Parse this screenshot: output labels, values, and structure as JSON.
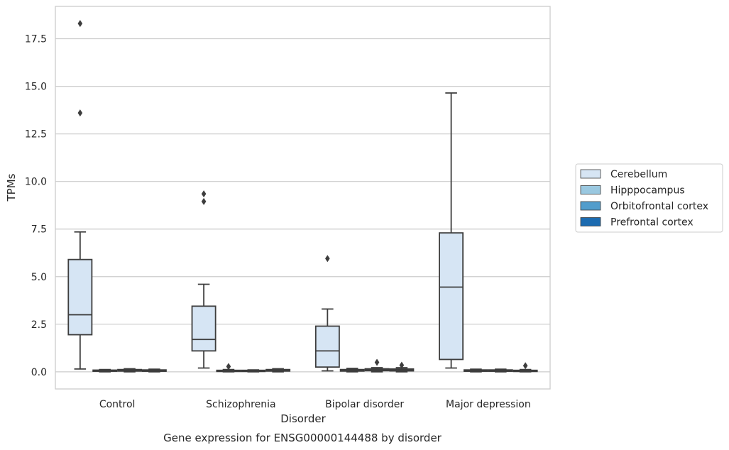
{
  "chart_data": {
    "type": "box",
    "caption": "Gene expression for ENSG00000144488 by disorder",
    "xlabel": "Disorder",
    "ylabel": "TPMs",
    "ylim": [
      -0.9,
      19.2
    ],
    "yticks": [
      0.0,
      2.5,
      5.0,
      7.5,
      10.0,
      12.5,
      15.0,
      17.5
    ],
    "ytick_labels": [
      "0.0",
      "2.5",
      "5.0",
      "7.5",
      "10.0",
      "12.5",
      "15.0",
      "17.5"
    ],
    "grid": true,
    "legend_position": "right",
    "categories": [
      "Control",
      "Schizophrenia",
      "Bipolar disorder",
      "Major depression"
    ],
    "series": [
      {
        "name": "Cerebellum",
        "color": "#d6e5f4",
        "boxes": [
          {
            "whislo": 0.15,
            "q1": 1.95,
            "med": 3.0,
            "q3": 5.9,
            "whishi": 7.35,
            "fliers": [
              13.6,
              18.3
            ]
          },
          {
            "whislo": 0.2,
            "q1": 1.1,
            "med": 1.7,
            "q3": 3.45,
            "whishi": 4.6,
            "fliers": [
              8.95,
              9.35
            ]
          },
          {
            "whislo": 0.05,
            "q1": 0.25,
            "med": 1.1,
            "q3": 2.4,
            "whishi": 3.3,
            "fliers": [
              5.95
            ]
          },
          {
            "whislo": 0.2,
            "q1": 0.65,
            "med": 4.45,
            "q3": 7.3,
            "whishi": 14.65,
            "fliers": []
          }
        ]
      },
      {
        "name": "Hipppocampus",
        "color": "#9ac8e0",
        "boxes": [
          {
            "whislo": 0.0,
            "q1": 0.03,
            "med": 0.06,
            "q3": 0.09,
            "whishi": 0.12,
            "fliers": []
          },
          {
            "whislo": 0.0,
            "q1": 0.02,
            "med": 0.05,
            "q3": 0.08,
            "whishi": 0.12,
            "fliers": [
              0.28
            ]
          },
          {
            "whislo": 0.0,
            "q1": 0.04,
            "med": 0.08,
            "q3": 0.12,
            "whishi": 0.18,
            "fliers": []
          },
          {
            "whislo": 0.0,
            "q1": 0.03,
            "med": 0.06,
            "q3": 0.1,
            "whishi": 0.14,
            "fliers": []
          }
        ]
      },
      {
        "name": "Orbitofrontal cortex",
        "color": "#529dcc",
        "boxes": [
          {
            "whislo": 0.0,
            "q1": 0.04,
            "med": 0.08,
            "q3": 0.12,
            "whishi": 0.16,
            "fliers": []
          },
          {
            "whislo": 0.0,
            "q1": 0.02,
            "med": 0.05,
            "q3": 0.08,
            "whishi": 0.1,
            "fliers": []
          },
          {
            "whislo": 0.0,
            "q1": 0.06,
            "med": 0.11,
            "q3": 0.16,
            "whishi": 0.22,
            "fliers": [
              0.5
            ]
          },
          {
            "whislo": 0.0,
            "q1": 0.03,
            "med": 0.06,
            "q3": 0.1,
            "whishi": 0.14,
            "fliers": []
          }
        ]
      },
      {
        "name": "Prefrontal cortex",
        "color": "#1c6bb0",
        "boxes": [
          {
            "whislo": 0.0,
            "q1": 0.03,
            "med": 0.06,
            "q3": 0.1,
            "whishi": 0.14,
            "fliers": []
          },
          {
            "whislo": 0.0,
            "q1": 0.04,
            "med": 0.08,
            "q3": 0.12,
            "whishi": 0.16,
            "fliers": []
          },
          {
            "whislo": 0.0,
            "q1": 0.05,
            "med": 0.1,
            "q3": 0.15,
            "whishi": 0.22,
            "fliers": [
              0.35
            ]
          },
          {
            "whislo": 0.0,
            "q1": 0.02,
            "med": 0.05,
            "q3": 0.08,
            "whishi": 0.12,
            "fliers": [
              0.32
            ]
          }
        ]
      }
    ]
  }
}
